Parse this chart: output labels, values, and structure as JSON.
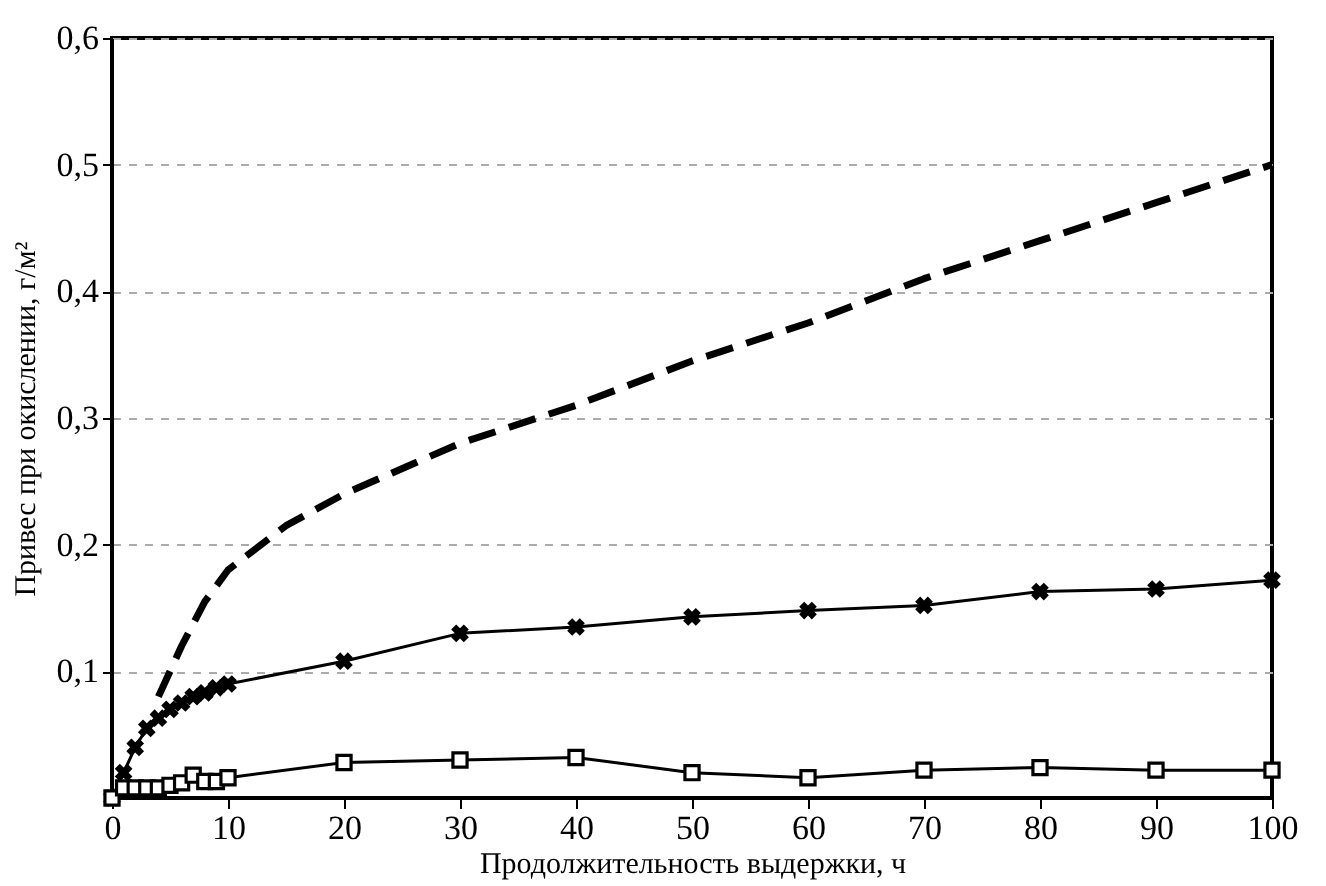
{
  "chart_data": {
    "type": "line",
    "xlabel": "Продолжительность выдержки, ч",
    "ylabel": "Привес при окислении, г/м²",
    "xlim": [
      0,
      100
    ],
    "xticks": [
      0,
      10,
      20,
      30,
      40,
      50,
      60,
      70,
      80,
      90,
      100
    ],
    "ylim": [
      0,
      0.6
    ],
    "yticks": [
      {
        "value": 0.1,
        "label": "0,1"
      },
      {
        "value": 0.2,
        "label": "0,2"
      },
      {
        "value": 0.3,
        "label": "0,3"
      },
      {
        "value": 0.4,
        "label": "0,4"
      },
      {
        "value": 0.5,
        "label": "0,5"
      },
      {
        "value": 0.6,
        "label": "0,6"
      }
    ],
    "grid": "y",
    "series": [
      {
        "color": "#000000",
        "marker": "none",
        "line_style": "dashed",
        "x": [
          4,
          6,
          8,
          10,
          15,
          20,
          30,
          40,
          50,
          60,
          70,
          80,
          90,
          100
        ],
        "values": [
          0.08,
          0.12,
          0.155,
          0.18,
          0.215,
          0.24,
          0.28,
          0.31,
          0.345,
          0.375,
          0.41,
          0.44,
          0.47,
          0.5
        ]
      },
      {
        "color": "#000000",
        "marker": "cross",
        "line_style": "solid",
        "x": [
          0,
          1,
          2,
          3,
          4,
          5,
          6,
          7,
          8,
          9,
          10,
          20,
          30,
          40,
          50,
          60,
          70,
          80,
          90,
          100
        ],
        "values": [
          0,
          0.02,
          0.04,
          0.055,
          0.063,
          0.07,
          0.075,
          0.08,
          0.083,
          0.087,
          0.09,
          0.108,
          0.13,
          0.135,
          0.143,
          0.148,
          0.152,
          0.163,
          0.165,
          0.172
        ]
      },
      {
        "color": "#000000",
        "marker": "square",
        "line_style": "solid",
        "x": [
          0,
          1,
          2,
          3,
          4,
          5,
          6,
          7,
          8,
          9,
          10,
          20,
          30,
          40,
          50,
          60,
          70,
          80,
          90,
          100
        ],
        "values": [
          0,
          0.008,
          0.008,
          0.008,
          0.008,
          0.01,
          0.012,
          0.018,
          0.013,
          0.013,
          0.016,
          0.028,
          0.03,
          0.032,
          0.02,
          0.016,
          0.022,
          0.024,
          0.022,
          0.022
        ]
      }
    ]
  }
}
